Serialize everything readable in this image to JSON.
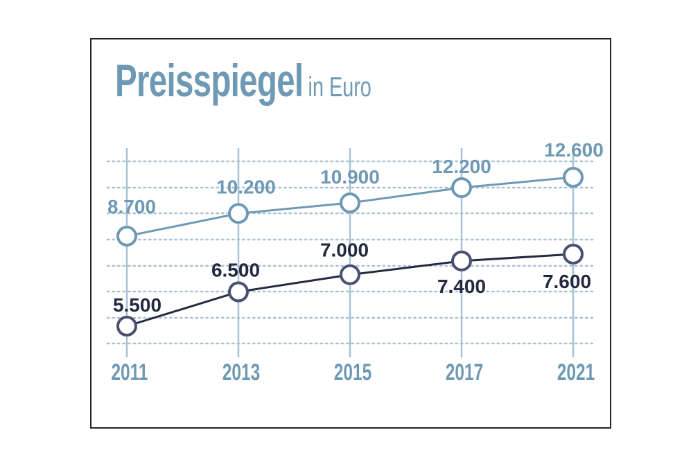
{
  "chart_data": {
    "type": "line",
    "title": "Preisspiegel",
    "subtitle": "in Euro",
    "categories": [
      "2011",
      "2013",
      "2015",
      "2017",
      "2021"
    ],
    "series": [
      {
        "values": [
          8700,
          10200,
          10900,
          12200,
          12600
        ],
        "labels": [
          "8.700",
          "10.200",
          "10.900",
          "12.200",
          "12.600"
        ],
        "color": "#6e99b4"
      },
      {
        "values": [
          5500,
          6500,
          7000,
          7400,
          7600
        ],
        "labels": [
          "5.500",
          "6.500",
          "7.000",
          "7.400",
          "7.600"
        ],
        "color": "#232a3f"
      }
    ],
    "grid": true,
    "legend": "none",
    "colors": {
      "axis_labels": "#6e99b4",
      "gridlines": "#a9c2d3"
    }
  }
}
